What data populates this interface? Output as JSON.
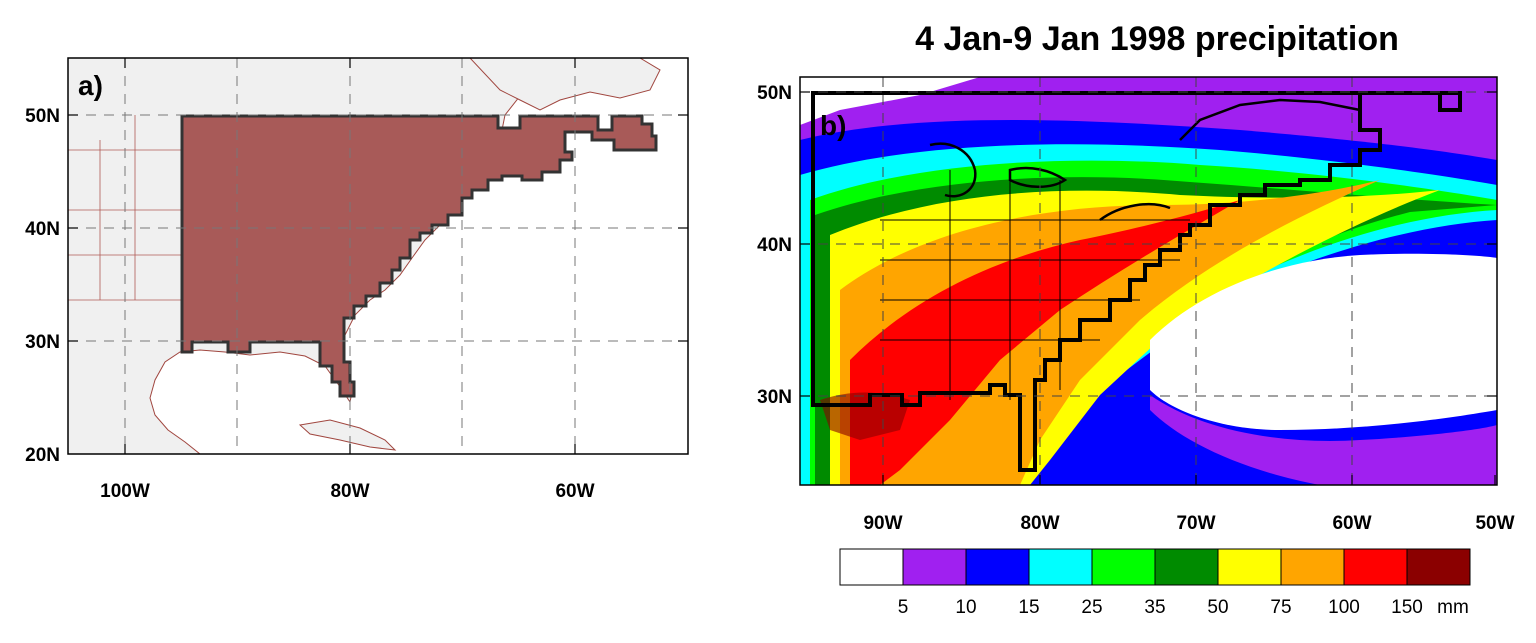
{
  "panel_a": {
    "label": "a)",
    "lat_ticks": [
      "50N",
      "40N",
      "30N",
      "20N"
    ],
    "lon_ticks": [
      "100W",
      "80W",
      "60W"
    ],
    "colors": {
      "ocean": "#ffffff",
      "land": "#f0f0f0",
      "domain_fill": "#a85a58",
      "border": "#a0463f",
      "outline": "#333333"
    }
  },
  "panel_b": {
    "label": "b)",
    "title": "4 Jan-9 Jan 1998 precipitation",
    "lat_ticks": [
      "50N",
      "40N",
      "30N"
    ],
    "lon_ticks": [
      "90W",
      "80W",
      "70W",
      "60W",
      "50W"
    ],
    "colorbar": {
      "colors": [
        "#ffffff",
        "#a020f0",
        "#0000ff",
        "#00ffff",
        "#00ff00",
        "#008b00",
        "#ffff00",
        "#ffa500",
        "#ff0000",
        "#8b0000"
      ],
      "labels": [
        "5",
        "10",
        "15",
        "25",
        "35",
        "50",
        "75",
        "100",
        "150"
      ],
      "units": "mm"
    }
  }
}
